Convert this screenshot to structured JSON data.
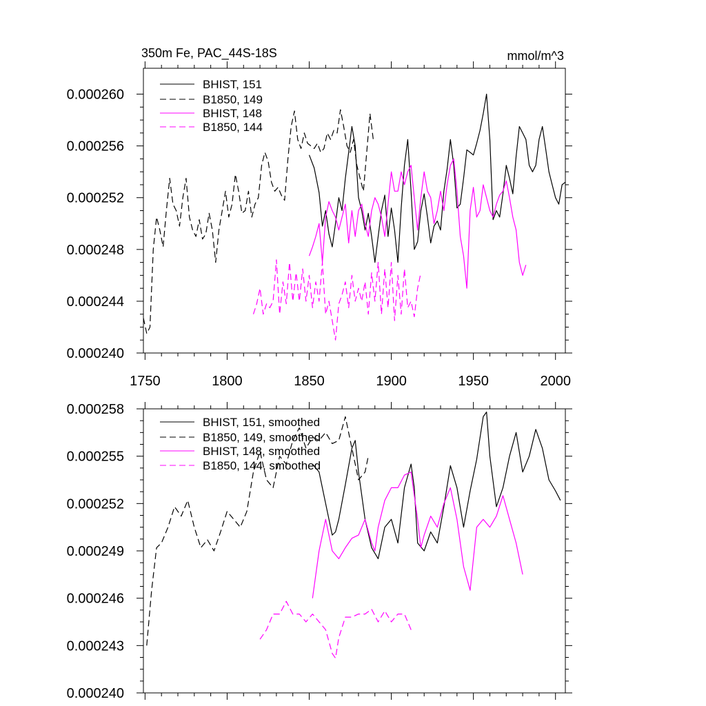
{
  "chart_data": [
    {
      "type": "line",
      "title": "350m Fe, PAC_44S-18S",
      "units": "mmol/m^3",
      "xlim": [
        1749,
        2006
      ],
      "ylim": [
        0.00024,
        0.000262
      ],
      "x_ticks": [
        1750,
        1800,
        1850,
        1900,
        1950,
        2000
      ],
      "y_ticks": [
        "0.000240",
        "0.000244",
        "0.000248",
        "0.000252",
        "0.000256",
        "0.000260"
      ],
      "y_tick_values": [
        0.00024,
        0.000244,
        0.000248,
        0.000252,
        0.000256,
        0.00026
      ],
      "legend_position": "top-left",
      "series": [
        {
          "name": "BHIST, 151",
          "color": "#000000",
          "dash": "solid",
          "x": [
            1850,
            1853,
            1856,
            1858,
            1860,
            1862,
            1864,
            1866,
            1868,
            1870,
            1872,
            1874,
            1876,
            1878,
            1880,
            1882,
            1884,
            1886,
            1888,
            1890,
            1892,
            1894,
            1896,
            1898,
            1900,
            1902,
            1904,
            1906,
            1908,
            1910,
            1912,
            1914,
            1916,
            1918,
            1920,
            1922,
            1924,
            1926,
            1928,
            1930,
            1932,
            1934,
            1936,
            1938,
            1940,
            1942,
            1944,
            1946,
            1948,
            1950,
            1952,
            1954,
            1956,
            1958,
            1960,
            1962,
            1964,
            1966,
            1968,
            1970,
            1972,
            1974,
            1976,
            1978,
            1980,
            1982,
            1984,
            1986,
            1988,
            1990,
            1992,
            1994,
            1996,
            1998,
            2000,
            2002,
            2004,
            2006
          ],
          "y": [
            0.0002553,
            0.0002543,
            0.0002524,
            0.0002498,
            0.000251,
            0.0002492,
            0.0002482,
            0.00025,
            0.000252,
            0.000251,
            0.0002535,
            0.0002555,
            0.0002575,
            0.000256,
            0.000252,
            0.000251,
            0.0002495,
            0.0002508,
            0.000249,
            0.000247,
            0.000249,
            0.000251,
            0.0002522,
            0.000249,
            0.0002512,
            0.0002495,
            0.000247,
            0.0002512,
            0.0002545,
            0.0002565,
            0.0002525,
            0.000248,
            0.0002486,
            0.000251,
            0.0002523,
            0.0002505,
            0.0002485,
            0.0002498,
            0.0002502,
            0.0002495,
            0.0002525,
            0.0002542,
            0.0002565,
            0.0002545,
            0.0002512,
            0.0002515,
            0.0002535,
            0.0002557,
            0.0002555,
            0.0002553,
            0.0002562,
            0.0002572,
            0.0002585,
            0.00026,
            0.0002565,
            0.0002503,
            0.000251,
            0.0002505,
            0.0002523,
            0.0002545,
            0.0002535,
            0.0002523,
            0.0002552,
            0.0002575,
            0.000257,
            0.0002565,
            0.0002545,
            0.000254,
            0.0002545,
            0.0002565,
            0.0002575,
            0.0002558,
            0.000254,
            0.000253,
            0.000252,
            0.0002515,
            0.000253,
            0.0002532
          ]
        },
        {
          "name": "B1850, 149",
          "color": "#000000",
          "dash": "dashed",
          "x": [
            1749,
            1751,
            1753,
            1755,
            1757,
            1759,
            1761,
            1763,
            1765,
            1767,
            1769,
            1771,
            1773,
            1775,
            1777,
            1779,
            1781,
            1783,
            1785,
            1787,
            1789,
            1791,
            1793,
            1795,
            1797,
            1799,
            1801,
            1803,
            1805,
            1807,
            1809,
            1811,
            1813,
            1815,
            1817,
            1819,
            1821,
            1823,
            1825,
            1827,
            1829,
            1831,
            1833,
            1835,
            1837,
            1839,
            1841,
            1843,
            1845,
            1847,
            1849,
            1851,
            1853,
            1855,
            1857,
            1859,
            1861,
            1863,
            1865,
            1867,
            1869,
            1871,
            1873,
            1875,
            1877,
            1879,
            1881,
            1883,
            1885,
            1887,
            1889
          ],
          "y": [
            0.0002427,
            0.0002415,
            0.000242,
            0.000248,
            0.0002505,
            0.0002495,
            0.0002482,
            0.000251,
            0.0002535,
            0.0002515,
            0.000251,
            0.0002498,
            0.000252,
            0.0002535,
            0.0002505,
            0.0002495,
            0.000249,
            0.0002503,
            0.0002488,
            0.0002492,
            0.0002508,
            0.0002495,
            0.000247,
            0.0002495,
            0.000251,
            0.0002525,
            0.0002505,
            0.0002515,
            0.0002538,
            0.0002525,
            0.0002508,
            0.000251,
            0.0002525,
            0.0002505,
            0.0002515,
            0.000252,
            0.0002545,
            0.0002555,
            0.0002548,
            0.0002532,
            0.0002525,
            0.0002528,
            0.0002522,
            0.0002518,
            0.000255,
            0.0002575,
            0.0002587,
            0.0002565,
            0.0002558,
            0.000257,
            0.0002562,
            0.000256,
            0.0002558,
            0.0002562,
            0.0002555,
            0.0002558,
            0.000257,
            0.0002565,
            0.0002572,
            0.000257,
            0.0002588,
            0.0002575,
            0.000256,
            0.0002555,
            0.0002565,
            0.0002545,
            0.0002535,
            0.0002525,
            0.0002555,
            0.0002585,
            0.0002565
          ]
        },
        {
          "name": "BHIST, 148",
          "color": "#ff00ff",
          "dash": "solid",
          "x": [
            1850,
            1852,
            1854,
            1856,
            1858,
            1860,
            1862,
            1864,
            1866,
            1868,
            1870,
            1872,
            1874,
            1876,
            1878,
            1880,
            1882,
            1884,
            1886,
            1888,
            1890,
            1892,
            1894,
            1896,
            1898,
            1900,
            1902,
            1904,
            1906,
            1908,
            1910,
            1912,
            1914,
            1916,
            1918,
            1920,
            1922,
            1924,
            1926,
            1928,
            1930,
            1932,
            1934,
            1936,
            1938,
            1940,
            1942,
            1944,
            1946,
            1948,
            1950,
            1952,
            1954,
            1956,
            1958,
            1960,
            1962,
            1964,
            1966,
            1968,
            1970,
            1972,
            1974,
            1976,
            1978,
            1980,
            1982
          ],
          "y": [
            0.0002475,
            0.0002482,
            0.000249,
            0.00025,
            0.000247,
            0.0002505,
            0.0002517,
            0.000251,
            0.0002505,
            0.0002495,
            0.0002505,
            0.0002515,
            0.0002485,
            0.000251,
            0.000249,
            0.000251,
            0.0002515,
            0.00025,
            0.000249,
            0.000251,
            0.000252,
            0.0002515,
            0.0002505,
            0.000249,
            0.0002515,
            0.000254,
            0.0002525,
            0.0002525,
            0.000254,
            0.000253,
            0.000254,
            0.0002545,
            0.000252,
            0.0002495,
            0.000252,
            0.000254,
            0.0002525,
            0.000252,
            0.00025,
            0.000251,
            0.0002525,
            0.000251,
            0.000253,
            0.0002545,
            0.000255,
            0.0002525,
            0.000249,
            0.0002475,
            0.000245,
            0.000251,
            0.0002528,
            0.0002505,
            0.000251,
            0.000253,
            0.000252,
            0.000251,
            0.0002505,
            0.0002515,
            0.0002522,
            0.0002525,
            0.0002533,
            0.000252,
            0.0002505,
            0.0002495,
            0.000247,
            0.000246,
            0.0002468
          ]
        },
        {
          "name": "B1850, 144",
          "color": "#ff00ff",
          "dash": "dashed",
          "x": [
            1816,
            1818,
            1820,
            1822,
            1824,
            1826,
            1828,
            1830,
            1832,
            1834,
            1836,
            1838,
            1840,
            1842,
            1844,
            1846,
            1848,
            1850,
            1852,
            1854,
            1856,
            1858,
            1860,
            1862,
            1864,
            1866,
            1868,
            1870,
            1872,
            1874,
            1876,
            1878,
            1880,
            1882,
            1884,
            1886,
            1888,
            1890,
            1892,
            1894,
            1896,
            1898,
            1900,
            1902,
            1904,
            1906,
            1908,
            1910,
            1912,
            1914,
            1916,
            1918
          ],
          "y": [
            0.000243,
            0.0002438,
            0.000245,
            0.000243,
            0.0002438,
            0.0002435,
            0.000244,
            0.0002472,
            0.000243,
            0.0002455,
            0.0002438,
            0.000247,
            0.000244,
            0.0002462,
            0.000244,
            0.0002465,
            0.000244,
            0.000246,
            0.0002435,
            0.0002455,
            0.000244,
            0.000247,
            0.000243,
            0.000244,
            0.0002425,
            0.000241,
            0.0002438,
            0.0002445,
            0.0002455,
            0.0002435,
            0.000246,
            0.000244,
            0.000245,
            0.000244,
            0.0002455,
            0.000243,
            0.0002462,
            0.000244,
            0.000247,
            0.000243,
            0.0002465,
            0.0002435,
            0.000247,
            0.0002425,
            0.000246,
            0.000243,
            0.0002465,
            0.0002435,
            0.000244,
            0.0002428,
            0.000245,
            0.0002462
          ]
        }
      ]
    },
    {
      "type": "line",
      "xlim": [
        1749,
        2006
      ],
      "ylim": [
        0.00024,
        0.000258
      ],
      "y_ticks": [
        "0.000240",
        "0.000243",
        "0.000246",
        "0.000249",
        "0.000252",
        "0.000255",
        "0.000258"
      ],
      "y_tick_values": [
        0.00024,
        0.000243,
        0.000246,
        0.000249,
        0.000252,
        0.000255,
        0.000258
      ],
      "legend_position": "top-left",
      "series": [
        {
          "name": "BHIST, 151, smoothed",
          "color": "#000000",
          "dash": "solid",
          "x": [
            1852,
            1856,
            1860,
            1864,
            1866,
            1868,
            1872,
            1876,
            1878,
            1880,
            1884,
            1888,
            1892,
            1896,
            1900,
            1904,
            1908,
            1912,
            1914,
            1916,
            1920,
            1924,
            1928,
            1932,
            1936,
            1940,
            1944,
            1948,
            1952,
            1956,
            1958,
            1960,
            1964,
            1968,
            1972,
            1976,
            1980,
            1984,
            1988,
            1992,
            1996,
            2000,
            2003
          ],
          "y": [
            0.0002545,
            0.000254,
            0.000252,
            0.00025,
            0.0002502,
            0.000251,
            0.0002532,
            0.0002555,
            0.000256,
            0.000254,
            0.000251,
            0.0002492,
            0.0002485,
            0.0002505,
            0.000251,
            0.0002495,
            0.000253,
            0.0002545,
            0.000253,
            0.0002495,
            0.000249,
            0.0002502,
            0.0002495,
            0.0002518,
            0.0002544,
            0.000253,
            0.0002505,
            0.0002528,
            0.0002548,
            0.0002575,
            0.0002578,
            0.000255,
            0.0002518,
            0.000253,
            0.000255,
            0.0002565,
            0.000254,
            0.000255,
            0.0002567,
            0.0002555,
            0.0002535,
            0.0002528,
            0.0002522
          ]
        },
        {
          "name": "B1850, 149, smoothed",
          "color": "#000000",
          "dash": "dashed",
          "x": [
            1751,
            1754,
            1757,
            1760,
            1764,
            1768,
            1772,
            1776,
            1780,
            1784,
            1788,
            1792,
            1796,
            1800,
            1804,
            1808,
            1812,
            1816,
            1820,
            1824,
            1828,
            1832,
            1836,
            1840,
            1844,
            1848,
            1852,
            1856,
            1860,
            1864,
            1868,
            1872,
            1876,
            1880,
            1884,
            1886
          ],
          "y": [
            0.000243,
            0.0002465,
            0.0002492,
            0.0002495,
            0.0002505,
            0.0002518,
            0.0002512,
            0.0002522,
            0.0002505,
            0.0002492,
            0.0002497,
            0.000249,
            0.0002502,
            0.0002515,
            0.000251,
            0.0002505,
            0.0002515,
            0.000254,
            0.0002553,
            0.0002535,
            0.000253,
            0.000255,
            0.0002545,
            0.000256,
            0.0002568,
            0.0002555,
            0.0002562,
            0.000256,
            0.0002565,
            0.0002558,
            0.000256,
            0.0002575,
            0.0002555,
            0.0002535,
            0.000254,
            0.000255
          ]
        },
        {
          "name": "BHIST, 148, smoothed",
          "color": "#ff00ff",
          "dash": "solid",
          "x": [
            1852,
            1856,
            1860,
            1864,
            1868,
            1872,
            1876,
            1880,
            1884,
            1888,
            1890,
            1892,
            1896,
            1900,
            1904,
            1908,
            1912,
            1916,
            1918,
            1920,
            1924,
            1928,
            1932,
            1936,
            1940,
            1944,
            1948,
            1952,
            1956,
            1960,
            1964,
            1968,
            1972,
            1976,
            1980
          ],
          "y": [
            0.000246,
            0.000249,
            0.000251,
            0.000249,
            0.0002485,
            0.0002492,
            0.0002498,
            0.00025,
            0.000251,
            0.0002495,
            0.000249,
            0.0002505,
            0.0002522,
            0.000253,
            0.000253,
            0.0002538,
            0.000254,
            0.000251,
            0.0002492,
            0.00025,
            0.0002512,
            0.0002505,
            0.000252,
            0.000253,
            0.000251,
            0.000248,
            0.0002465,
            0.0002505,
            0.000251,
            0.0002505,
            0.0002512,
            0.0002525,
            0.000251,
            0.0002495,
            0.0002475
          ]
        },
        {
          "name": "B1850, 144, smoothed",
          "color": "#ff00ff",
          "dash": "dashed",
          "x": [
            1820,
            1824,
            1828,
            1832,
            1836,
            1840,
            1844,
            1848,
            1852,
            1856,
            1860,
            1864,
            1866,
            1868,
            1872,
            1876,
            1880,
            1884,
            1888,
            1892,
            1896,
            1900,
            1904,
            1908,
            1912,
            1914
          ],
          "y": [
            0.0002434,
            0.000244,
            0.000245,
            0.000245,
            0.0002458,
            0.000245,
            0.000245,
            0.0002445,
            0.000245,
            0.0002445,
            0.000244,
            0.0002425,
            0.0002422,
            0.0002435,
            0.0002448,
            0.0002448,
            0.000245,
            0.000245,
            0.0002453,
            0.0002445,
            0.0002452,
            0.0002445,
            0.000245,
            0.000245,
            0.000244,
            0.000244
          ]
        }
      ]
    }
  ]
}
